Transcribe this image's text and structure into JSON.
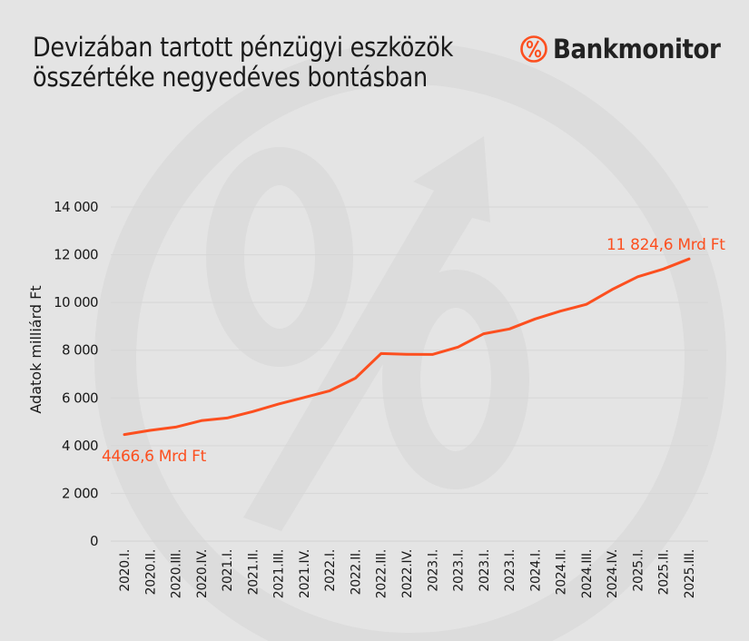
{
  "header": {
    "title_line1": "Devizában tartott pénzügyi eszközök",
    "title_line2": "összértéke negyedéves bontásban",
    "brand_name": "Bankmonitor",
    "brand_icon": "percent-circle-icon"
  },
  "colors": {
    "background": "#e4e4e4",
    "line": "#fc4f1f",
    "watermark": "#dcdcdc",
    "grid": "#d6d6d6",
    "text": "#1a1a1a"
  },
  "chart_data": {
    "type": "line",
    "title": "Devizában tartott pénzügyi eszközök összértéke negyedéves bontásban",
    "xlabel": "",
    "ylabel": "Adatok milliárd Ft",
    "ylim": [
      0,
      14000
    ],
    "yticks": [
      0,
      2000,
      4000,
      6000,
      8000,
      10000,
      12000,
      14000
    ],
    "ytick_labels": [
      "0",
      "2 000",
      "4 000",
      "6 000",
      "8 000",
      "10 000",
      "12 000",
      "14 000"
    ],
    "grid": true,
    "legend": null,
    "categories": [
      "2020.I.",
      "2020.II.",
      "2020.III.",
      "2020.IV.",
      "2021.I.",
      "2021.II.",
      "2021.III.",
      "2021.IV.",
      "2022.I.",
      "2022.II.",
      "2022.III.",
      "2022.IV.",
      "2023.I.",
      "2023.I.",
      "2023.I.",
      "2023.I.",
      "2024.I.",
      "2024.II.",
      "2024.III.",
      "2024.IV.",
      "2025.I.",
      "2025.II.",
      "2025.III."
    ],
    "series": [
      {
        "name": "Devizában tartott pénzügyi eszközök",
        "values": [
          4466.6,
          4640,
          4780,
          5050,
          5160,
          5430,
          5740,
          6020,
          6300,
          6830,
          7860,
          7830,
          7820,
          8130,
          8690,
          8890,
          9310,
          9640,
          9920,
          10540,
          11080,
          11400,
          11824.6
        ]
      }
    ],
    "annotations": [
      {
        "text": "4466,6 Mrd Ft",
        "category": "2020.I.",
        "value": 4466.6
      },
      {
        "text": "11 824,6 Mrd Ft",
        "category": "2025.III.",
        "value": 11824.6
      }
    ]
  }
}
